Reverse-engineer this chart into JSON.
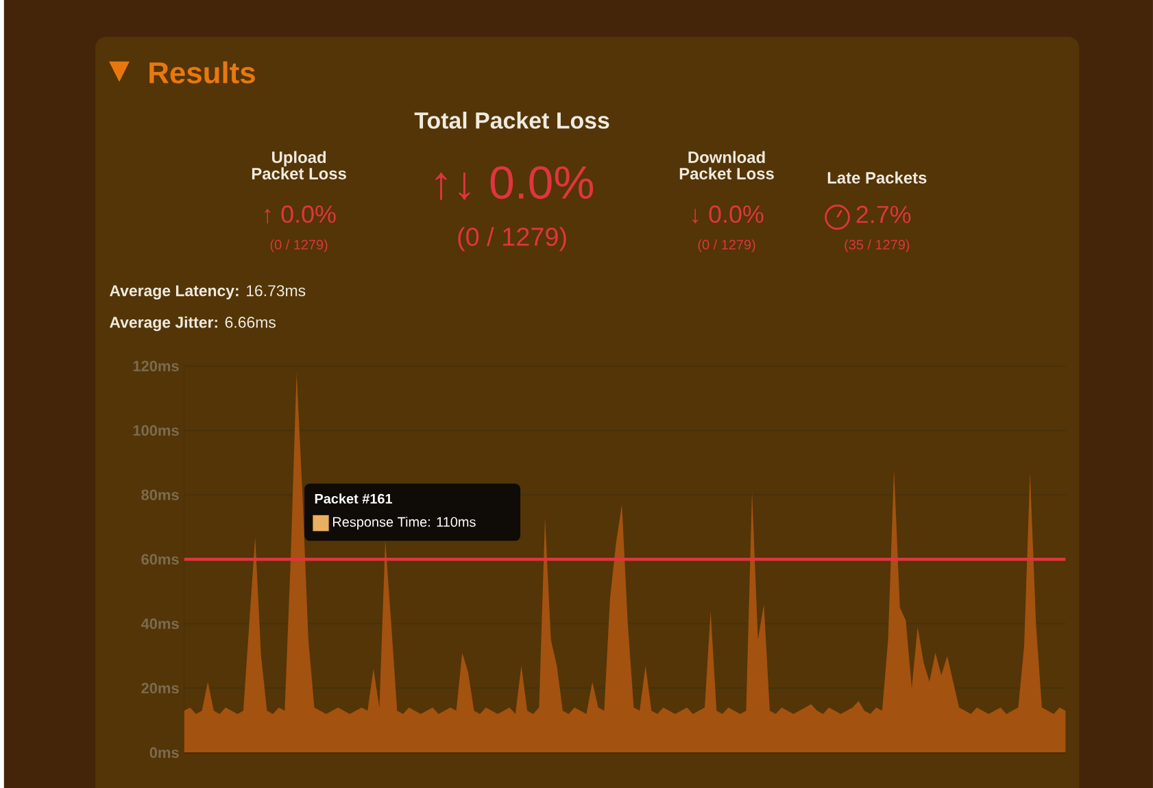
{
  "chart_data": {
    "type": "area",
    "title": "Results",
    "annotations": [
      "Total Packet Loss",
      "↑↓ 0.0%",
      "(0 / 1279)",
      "Upload Packet Loss",
      "↑ 0.0%",
      "(0 / 1279)",
      "Download Packet Loss",
      "↓ 0.0%",
      "(0 / 1279)",
      "Late Packets",
      "2.7%",
      "(35 / 1279)",
      "**Average Latency:** 16.73ms",
      "**Average Jitter:** 6.66ms",
      "Packet #161",
      "Response Time: 110ms"
    ],
    "categories": [
      null,
      null,
      null,
      null,
      null,
      null,
      null,
      null,
      null,
      null,
      null,
      null,
      null,
      null,
      null,
      null,
      null,
      null,
      null,
      null,
      null,
      null,
      null,
      null,
      null,
      null,
      null,
      null,
      null,
      null,
      null,
      null,
      null,
      null,
      null,
      null,
      null,
      null,
      null,
      null,
      null,
      null,
      null,
      null,
      null,
      null,
      null,
      null,
      null,
      null,
      null,
      null,
      null,
      null,
      null,
      null,
      null,
      null,
      null,
      null,
      null,
      null,
      null,
      null,
      null,
      null,
      null,
      null,
      null,
      null,
      null,
      null,
      null,
      null,
      null,
      null,
      null,
      null,
      null,
      null,
      null,
      null,
      null,
      null,
      null,
      null,
      null,
      null,
      null,
      null,
      null,
      null,
      null,
      null,
      null,
      null,
      null,
      null,
      null,
      null,
      null,
      null,
      null,
      null,
      null,
      null,
      null,
      null,
      null,
      null,
      null,
      null,
      null,
      null,
      null,
      null,
      null,
      null,
      null,
      null,
      null,
      null,
      null,
      null,
      null,
      null,
      null,
      null,
      null,
      null,
      null,
      null,
      null,
      null,
      null,
      null,
      null,
      null,
      null,
      null,
      null,
      null,
      null,
      null,
      null,
      null,
      null,
      null,
      null,
      null
    ],
    "values": [
      13,
      14,
      12,
      13,
      22,
      13,
      12,
      14,
      13,
      12,
      13,
      40,
      67,
      30,
      13,
      12,
      14,
      13,
      60,
      118,
      80,
      35,
      14,
      13,
      12,
      13,
      14,
      13,
      12,
      13,
      14,
      13,
      26,
      14,
      66,
      40,
      13,
      12,
      14,
      13,
      12,
      13,
      14,
      12,
      13,
      14,
      13,
      31,
      25,
      13,
      12,
      14,
      13,
      12,
      13,
      14,
      12,
      27,
      13,
      12,
      14,
      73,
      35,
      27,
      13,
      12,
      14,
      13,
      12,
      22,
      14,
      13,
      48,
      65,
      77,
      40,
      14,
      13,
      27,
      13,
      12,
      14,
      13,
      12,
      13,
      14,
      12,
      13,
      14,
      44,
      13,
      12,
      14,
      13,
      12,
      13,
      81,
      35,
      46,
      13,
      12,
      14,
      13,
      12,
      13,
      14,
      15,
      13,
      12,
      14,
      13,
      12,
      13,
      14,
      16,
      13,
      12,
      14,
      13,
      35,
      88,
      45,
      41,
      20,
      39,
      28,
      22,
      31,
      24,
      30,
      22,
      14,
      13,
      12,
      14,
      13,
      12,
      13,
      14,
      12,
      13,
      14,
      33,
      87,
      40,
      14,
      13,
      12,
      14,
      13
    ],
    "color": "#a4520f",
    "ylim": [
      0,
      120
    ],
    "yticks": [
      {
        "value": 0,
        "label": "0ms"
      },
      {
        "value": 20,
        "label": "20ms"
      },
      {
        "value": 40,
        "label": "40ms"
      },
      {
        "value": 60,
        "label": "60ms"
      },
      {
        "value": 80,
        "label": "80ms"
      },
      {
        "value": 100,
        "label": "100ms"
      },
      {
        "value": 120,
        "label": "120ms"
      }
    ],
    "grid": "y",
    "tick_labels": "y",
    "ref_lines": [
      {
        "axis": "y",
        "value": 60,
        "color": "#e0353e"
      }
    ]
  }
}
